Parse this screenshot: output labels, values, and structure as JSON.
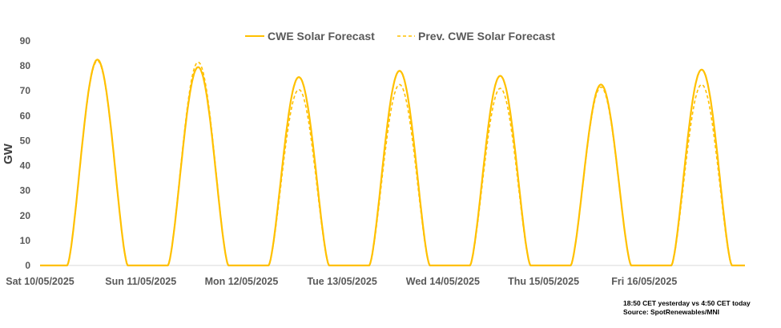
{
  "chart_data": {
    "type": "line",
    "title": "",
    "xlabel": "",
    "ylabel": "GW",
    "ylim": [
      0,
      90
    ],
    "yticks": [
      0,
      10,
      20,
      30,
      40,
      50,
      60,
      70,
      80,
      90
    ],
    "x_days": 7,
    "categories": [
      "Sat 10/05/2025",
      "Sun 11/05/2025",
      "Mon 12/05/2025",
      "Tue 13/05/2025",
      "Wed 14/05/2025",
      "Thu 15/05/2025",
      "Fri 16/05/2025"
    ],
    "series": [
      {
        "name": "CWE Solar Forecast",
        "style": "solid",
        "color": "#FFC000",
        "daily_peaks": [
          82.5,
          79.5,
          75.5,
          78,
          76,
          72.5,
          78.5
        ]
      },
      {
        "name": "Prev. CWE Solar Forecast",
        "style": "dashed",
        "color": "#FFC000",
        "daily_peaks": [
          82,
          81.5,
          70.5,
          72.5,
          71,
          71.5,
          72.5
        ]
      }
    ],
    "daylight": {
      "start_fraction": 0.27,
      "end_fraction": 0.87
    },
    "grid": false,
    "legend": "top"
  },
  "note": {
    "line1": "18:50 CET yesterday vs  4:50 CET today",
    "line2": "Source: SpotRenewables/MNI"
  }
}
